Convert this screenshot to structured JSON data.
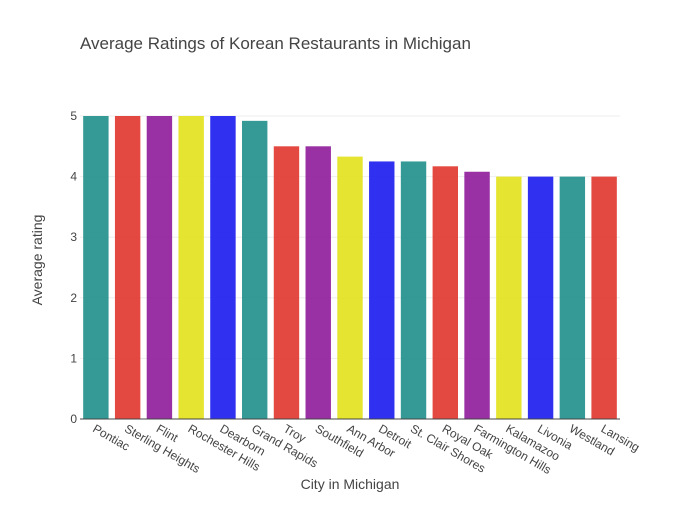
{
  "chart_data": {
    "type": "bar",
    "title": "Average Ratings of Korean Restaurants in Michigan",
    "xlabel": "City in Michigan",
    "ylabel": "Average rating",
    "ylim": [
      0,
      5
    ],
    "yticks": [
      0,
      1,
      2,
      3,
      4,
      5
    ],
    "grid": true,
    "categories": [
      "Pontiac",
      "Sterling Heights",
      "Flint",
      "Rochester Hills",
      "Dearborn",
      "Grand Rapids",
      "Troy",
      "Southfield",
      "Ann Arbor",
      "Detroit",
      "St. Clair Shores",
      "Royal Oak",
      "Farmington Hills",
      "Kalamazoo",
      "Livonia",
      "Westland",
      "Lansing"
    ],
    "values": [
      5.0,
      5.0,
      5.0,
      5.0,
      5.0,
      4.92,
      4.5,
      4.5,
      4.33,
      4.25,
      4.25,
      4.17,
      4.08,
      4.0,
      4.0,
      4.0,
      4.0
    ],
    "bar_colors": [
      "#1f8f8a",
      "#e0352b",
      "#8e1a99",
      "#e2e21b",
      "#1a1aee",
      "#1f8f8a",
      "#e0352b",
      "#8e1a99",
      "#e2e21b",
      "#1a1aee",
      "#1f8f8a",
      "#e0352b",
      "#8e1a99",
      "#e2e21b",
      "#1a1aee",
      "#1f8f8a",
      "#e0352b"
    ]
  }
}
